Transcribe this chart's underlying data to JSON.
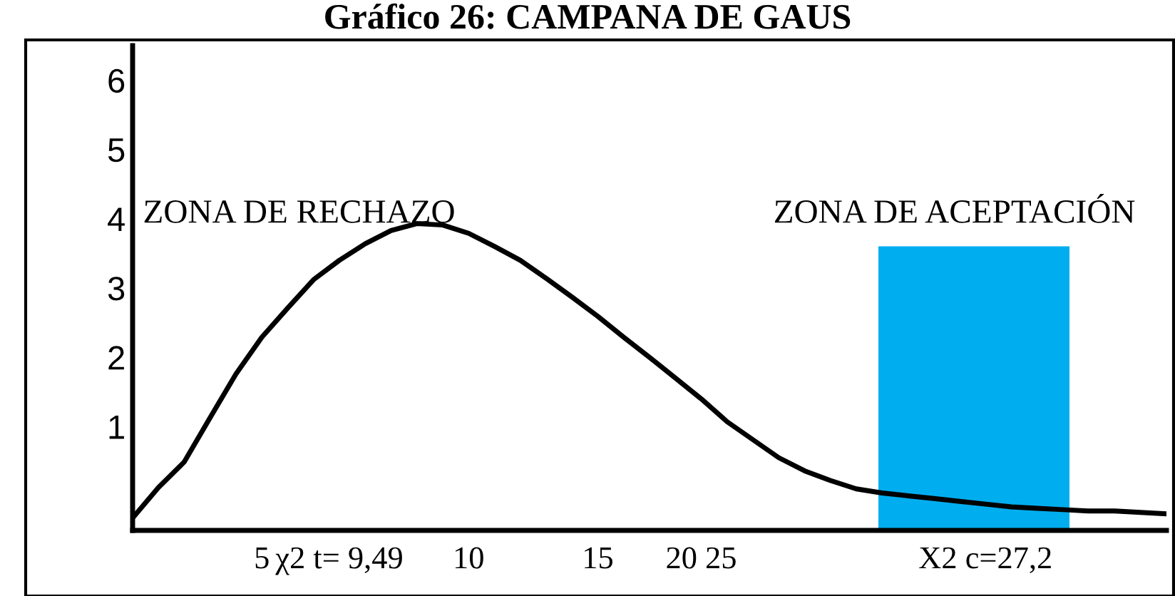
{
  "chart_data": {
    "type": "line",
    "title": "Gráfico 26: CAMPANA DE GAUS",
    "categories": [
      null,
      null,
      null,
      null,
      null,
      "5",
      null,
      null,
      "χ2 t= 9,49",
      null,
      null,
      null,
      null,
      "10",
      null,
      null,
      null,
      null,
      "15",
      null,
      null,
      null,
      "20 25",
      null,
      null,
      null,
      null,
      null,
      null,
      null,
      null,
      null,
      null,
      "X2 c=27,2",
      null,
      null,
      null,
      null,
      null,
      null,
      null
    ],
    "series": [
      {
        "color": "#000000",
        "values": [
          -0.32,
          0.12,
          0.49,
          1.13,
          1.76,
          2.29,
          2.71,
          3.12,
          3.4,
          3.64,
          3.83,
          3.93,
          3.91,
          3.79,
          3.6,
          3.4,
          3.14,
          2.87,
          2.59,
          2.29,
          2.0,
          1.7,
          1.4,
          1.07,
          0.81,
          0.55,
          0.36,
          0.22,
          0.1,
          0.04,
          0.0,
          -0.04,
          -0.08,
          -0.12,
          -0.16,
          -0.18,
          -0.2,
          -0.22,
          -0.22,
          -0.24,
          -0.26
        ]
      }
    ],
    "ylim": [
      -0.5,
      6.5
    ],
    "yticks": [
      1,
      2,
      3,
      4,
      5,
      6
    ],
    "grid": false,
    "legend": false,
    "annotations": [
      "ZONA DE RECHAZO",
      "ZONA DE ACEPTACIÓN"
    ]
  }
}
